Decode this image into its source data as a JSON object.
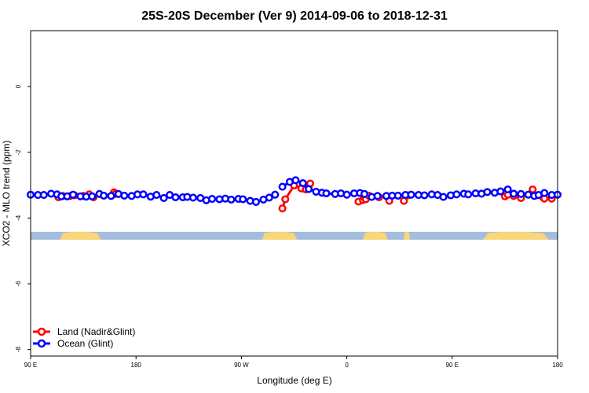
{
  "chart_data": {
    "type": "line",
    "title": "25S-20S December (Ver 9)   2014-09-06 to 2018-12-31",
    "xlabel": "Longitude (deg E)",
    "ylabel": "XCO2 - MLO trend (ppm)",
    "xlim": [
      90,
      450
    ],
    "ylim": [
      -8.2,
      1.7
    ],
    "x_ticks": [
      {
        "value": 90,
        "label": "90 E"
      },
      {
        "value": 162,
        "label": "180"
      },
      {
        "value": 234,
        "label": "90 W"
      },
      {
        "value": 306,
        "label": "0"
      },
      {
        "value": 378,
        "label": "90 E"
      },
      {
        "value": 450,
        "label": "180"
      }
    ],
    "y_ticks": [
      {
        "value": 0,
        "label": "0"
      },
      {
        "value": -2,
        "label": "-2"
      },
      {
        "value": -4,
        "label": "-4"
      },
      {
        "value": -6,
        "label": "-6"
      },
      {
        "value": -8,
        "label": "-8"
      }
    ],
    "land_band": {
      "y_range": [
        -4.66,
        -4.42
      ],
      "ocean_color": "#a4bddd",
      "land_color": "#f7d77a",
      "land_segments": [
        [
          110,
          138
        ],
        [
          248,
          272
        ],
        [
          317,
          334
        ],
        [
          345,
          349
        ],
        [
          399,
          444
        ]
      ]
    },
    "series": [
      {
        "name": "Land (Nadir&Glint)",
        "color": "#ff0000",
        "x": [
          109,
          112,
          117,
          120,
          126,
          130,
          133,
          147,
          148,
          262,
          264,
          270,
          275,
          278,
          281,
          314,
          317,
          318,
          319,
          321,
          328,
          335,
          345,
          348,
          414,
          416,
          420,
          425,
          433,
          436,
          440,
          441,
          446,
          453
        ],
        "y": [
          -3.37,
          -3.33,
          -3.33,
          -3.31,
          -3.33,
          -3.28,
          -3.37,
          -3.22,
          -3.27,
          -3.71,
          -3.43,
          -3.01,
          -3.1,
          -3.13,
          -2.95,
          -3.5,
          -3.45,
          -3.38,
          -3.43,
          -3.32,
          -3.37,
          -3.48,
          -3.48,
          -3.31,
          -3.34,
          -3.29,
          -3.33,
          -3.39,
          -3.13,
          -3.31,
          -3.37,
          -3.41,
          -3.41,
          -3.38
        ],
        "segments": [
          [
            112,
            127
          ],
          [
            138,
            163
          ],
          [
            249,
            277
          ],
          [
            299,
            314
          ],
          [
            329,
            339
          ],
          [
            404,
            423
          ],
          [
            425,
            436
          ]
        ]
      },
      {
        "name": "Ocean (Glint)",
        "color": "#0000ff",
        "x": [
          90,
          95,
          99,
          104,
          108,
          111,
          115,
          119,
          124,
          128,
          132,
          137,
          140,
          145,
          150,
          154,
          159,
          163,
          167,
          172,
          176,
          181,
          185,
          189,
          194,
          197,
          201,
          206,
          210,
          214,
          219,
          223,
          227,
          232,
          235,
          240,
          244,
          249,
          253,
          257,
          262,
          267,
          271,
          276,
          280,
          285,
          289,
          292,
          298,
          302,
          306,
          311,
          315,
          318,
          323,
          327,
          333,
          337,
          341,
          346,
          350,
          355,
          359,
          364,
          368,
          372,
          377,
          381,
          386,
          389,
          394,
          398,
          402,
          407,
          411,
          416,
          420,
          425,
          430,
          434,
          437,
          441,
          446,
          450,
          454
        ],
        "y": [
          -3.29,
          -3.3,
          -3.3,
          -3.26,
          -3.28,
          -3.34,
          -3.34,
          -3.29,
          -3.34,
          -3.35,
          -3.34,
          -3.27,
          -3.32,
          -3.33,
          -3.27,
          -3.32,
          -3.33,
          -3.28,
          -3.28,
          -3.35,
          -3.3,
          -3.39,
          -3.3,
          -3.37,
          -3.37,
          -3.36,
          -3.38,
          -3.39,
          -3.46,
          -3.42,
          -3.43,
          -3.41,
          -3.44,
          -3.42,
          -3.43,
          -3.48,
          -3.51,
          -3.44,
          -3.38,
          -3.29,
          -3.05,
          -2.9,
          -2.85,
          -2.94,
          -3.12,
          -3.2,
          -3.23,
          -3.25,
          -3.27,
          -3.25,
          -3.29,
          -3.25,
          -3.24,
          -3.27,
          -3.36,
          -3.33,
          -3.33,
          -3.32,
          -3.32,
          -3.3,
          -3.29,
          -3.3,
          -3.31,
          -3.28,
          -3.3,
          -3.36,
          -3.31,
          -3.28,
          -3.26,
          -3.28,
          -3.25,
          -3.26,
          -3.21,
          -3.23,
          -3.19,
          -3.13,
          -3.26,
          -3.27,
          -3.29,
          -3.33,
          -3.3,
          -3.24,
          -3.3,
          -3.29,
          -3.25
        ],
        "segments": [
          [
            90,
            113
          ],
          [
            113,
            127
          ],
          [
            140,
            214
          ],
          [
            262,
            313
          ],
          [
            337,
            339
          ],
          [
            340,
            377
          ],
          [
            377,
            420
          ],
          [
            430,
            454
          ]
        ]
      }
    ]
  }
}
